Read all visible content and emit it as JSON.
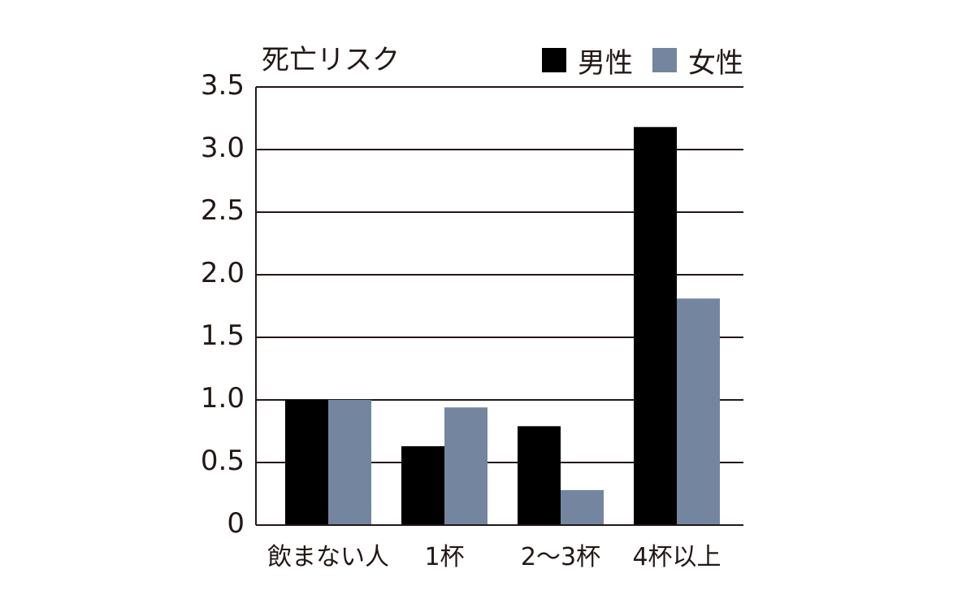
{
  "chart_data": {
    "type": "bar",
    "ylabel": "死亡リスク",
    "categories": [
      "飲まない人",
      "1杯",
      "2～3杯",
      "4杯以上"
    ],
    "series": [
      {
        "name": "男性",
        "values": [
          1.0,
          0.63,
          0.79,
          3.18
        ],
        "color": "#000000"
      },
      {
        "name": "女性",
        "values": [
          1.0,
          0.94,
          0.28,
          1.81
        ],
        "color": "#74869f"
      }
    ],
    "yticks": [
      "0",
      "0.5",
      "1.0",
      "1.5",
      "2.0",
      "2.5",
      "3.0",
      "3.5"
    ],
    "ylim": [
      0,
      3.5
    ],
    "grid": true,
    "legend": "top-right"
  }
}
